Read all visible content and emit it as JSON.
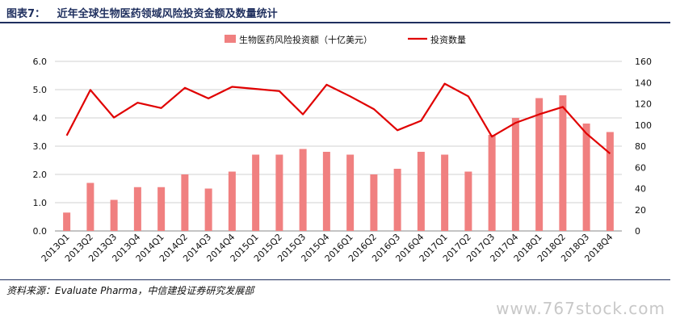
{
  "header": {
    "figure_label": "图表7：",
    "title": "近年全球生物医药领域风险投资金额及数量统计"
  },
  "footer": {
    "source": "资料来源：Evaluate Pharma，中信建投证券研究发展部",
    "watermark": "www.767stock.com"
  },
  "chart_data": {
    "type": "bar",
    "categories": [
      "2013Q1",
      "2013Q2",
      "2013Q3",
      "2013Q4",
      "2014Q1",
      "2014Q2",
      "2014Q3",
      "2014Q4",
      "2015Q1",
      "2015Q2",
      "2015Q3",
      "2015Q4",
      "2016Q1",
      "2016Q2",
      "2016Q3",
      "2016Q4",
      "2017Q1",
      "2017Q2",
      "2017Q3",
      "2017Q4",
      "2018Q1",
      "2018Q2",
      "2018Q3",
      "2018Q4"
    ],
    "series": [
      {
        "name": "生物医药风险投资额（十亿美元）",
        "type": "bar",
        "axis": "left",
        "color": "#f08080",
        "values": [
          0.65,
          1.7,
          1.1,
          1.55,
          1.55,
          2.0,
          1.5,
          2.1,
          2.7,
          2.7,
          2.9,
          2.8,
          2.7,
          2.0,
          2.2,
          2.8,
          2.7,
          2.1,
          3.4,
          4.0,
          4.7,
          4.8,
          3.8,
          3.5
        ]
      },
      {
        "name": "投资数量",
        "type": "line",
        "axis": "right",
        "color": "#e00000",
        "values": [
          90,
          133,
          107,
          121,
          116,
          135,
          125,
          136,
          134,
          132,
          110,
          138,
          127,
          115,
          95,
          104,
          139,
          127,
          89,
          102,
          110,
          117,
          92,
          73
        ]
      }
    ],
    "y_left": {
      "min": 0,
      "max": 6,
      "ticks": [
        "0.0",
        "1.0",
        "2.0",
        "3.0",
        "4.0",
        "5.0",
        "6.0"
      ]
    },
    "y_right": {
      "min": 0,
      "max": 160,
      "ticks": [
        "0",
        "20",
        "40",
        "60",
        "80",
        "100",
        "120",
        "140",
        "160"
      ]
    },
    "grid": true,
    "legend_position": "top-center"
  }
}
